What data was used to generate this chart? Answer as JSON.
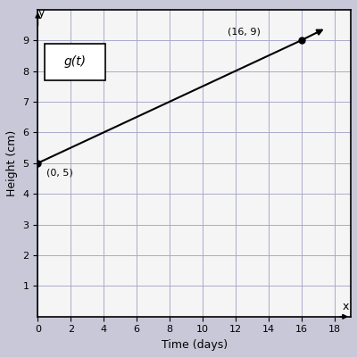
{
  "title": "",
  "xlabel": "Time (days)",
  "ylabel": "Height (cm)",
  "x_data": [
    0,
    16
  ],
  "y_data": [
    5,
    9
  ],
  "point_labels": [
    "(0, 5)",
    "(16, 9)"
  ],
  "legend_label": "g(t)",
  "xlim": [
    0,
    19
  ],
  "ylim": [
    0,
    10
  ],
  "xticks": [
    0,
    2,
    4,
    6,
    8,
    10,
    12,
    14,
    16,
    18
  ],
  "yticks": [
    1,
    2,
    3,
    4,
    5,
    6,
    7,
    8,
    9
  ],
  "line_color": "#000000",
  "point_color": "#000000",
  "grid_color": "#aaaacc",
  "background_color": "#f5f5f5",
  "fig_background": "#c8c8d8"
}
